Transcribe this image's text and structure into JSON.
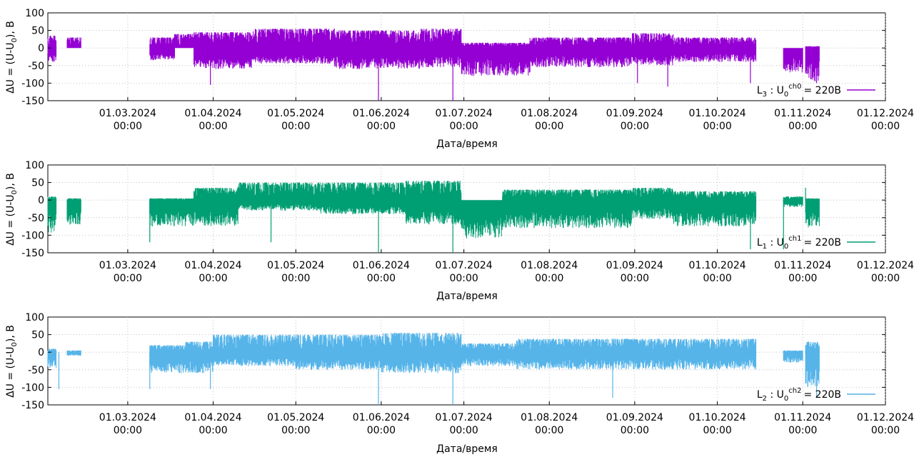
{
  "chart_data": [
    {
      "type": "line",
      "xlabel": "Дата/время",
      "ylabel_parts": [
        "ΔU = (U-U",
        "0",
        "), В"
      ],
      "ylim": [
        -150,
        100
      ],
      "yticks": [
        100,
        50,
        0,
        -50,
        -100,
        -150
      ],
      "xlim": [
        "2024-02-01",
        "2024-12-01"
      ],
      "xticks": [
        {
          "date": "2024-03-01",
          "label": "01.03.2024",
          "time": "00:00"
        },
        {
          "date": "2024-04-01",
          "label": "01.04.2024",
          "time": "00:00"
        },
        {
          "date": "2024-05-01",
          "label": "01.05.2024",
          "time": "00:00"
        },
        {
          "date": "2024-06-01",
          "label": "01.06.2024",
          "time": "00:00"
        },
        {
          "date": "2024-07-01",
          "label": "01.07.2024",
          "time": "00:00"
        },
        {
          "date": "2024-08-01",
          "label": "01.08.2024",
          "time": "00:00"
        },
        {
          "date": "2024-09-01",
          "label": "01.09.2024",
          "time": "00:00"
        },
        {
          "date": "2024-10-01",
          "label": "01.10.2024",
          "time": "00:00"
        },
        {
          "date": "2024-11-01",
          "label": "01.11.2024",
          "time": "00:00"
        },
        {
          "date": "2024-12-01",
          "label": "01.12.2024",
          "time": "00:00"
        }
      ],
      "grid": true,
      "legend_position": "bottom-right",
      "legend": {
        "phase": "L",
        "phase_sub": "3",
        "u": "U",
        "u_sub": "0",
        "channel": "ch0",
        "value": "= 220В"
      },
      "series": [
        {
          "color": "#9400d3",
          "segments": [
            {
              "start": "2024-02-01",
              "end": "2024-02-04",
              "lo": -40,
              "hi": 35
            },
            {
              "start": "2024-02-08",
              "end": "2024-02-13",
              "lo": 0,
              "hi": 30
            },
            {
              "start": "2024-03-09",
              "end": "2024-03-18",
              "lo": -35,
              "hi": 30
            },
            {
              "start": "2024-03-18",
              "end": "2024-03-25",
              "lo": 0,
              "hi": 40
            },
            {
              "start": "2024-03-25",
              "end": "2024-04-15",
              "lo": -60,
              "hi": 45
            },
            {
              "start": "2024-04-15",
              "end": "2024-05-15",
              "lo": -45,
              "hi": 55
            },
            {
              "start": "2024-05-15",
              "end": "2024-06-15",
              "lo": -60,
              "hi": 50
            },
            {
              "start": "2024-06-15",
              "end": "2024-06-30",
              "lo": -55,
              "hi": 55
            },
            {
              "start": "2024-06-30",
              "end": "2024-07-25",
              "lo": -80,
              "hi": 15
            },
            {
              "start": "2024-07-25",
              "end": "2024-08-31",
              "lo": -55,
              "hi": 30
            },
            {
              "start": "2024-08-31",
              "end": "2024-09-15",
              "lo": -50,
              "hi": 42
            },
            {
              "start": "2024-09-15",
              "end": "2024-10-15",
              "lo": -40,
              "hi": 30
            },
            {
              "start": "2024-10-25",
              "end": "2024-11-01",
              "lo": -70,
              "hi": 0
            },
            {
              "start": "2024-11-02",
              "end": "2024-11-07",
              "lo": -95,
              "hi": 5
            }
          ],
          "spikes": [
            {
              "date": "2024-03-31",
              "value": -105
            },
            {
              "date": "2024-05-31",
              "value": -150
            },
            {
              "date": "2024-06-27",
              "value": -150
            },
            {
              "date": "2024-09-02",
              "value": -100
            },
            {
              "date": "2024-09-13",
              "value": -110
            },
            {
              "date": "2024-10-13",
              "value": -100
            },
            {
              "date": "2024-11-06",
              "value": -100
            }
          ]
        }
      ]
    },
    {
      "type": "line",
      "xlabel": "Дата/время",
      "ylabel_parts": [
        "ΔU = (U-U",
        "0",
        "), В"
      ],
      "ylim": [
        -150,
        100
      ],
      "yticks": [
        100,
        50,
        0,
        -50,
        -100,
        -150
      ],
      "xlim": [
        "2024-02-01",
        "2024-12-01"
      ],
      "xticks": [
        {
          "date": "2024-03-01",
          "label": "01.03.2024",
          "time": "00:00"
        },
        {
          "date": "2024-04-01",
          "label": "01.04.2024",
          "time": "00:00"
        },
        {
          "date": "2024-05-01",
          "label": "01.05.2024",
          "time": "00:00"
        },
        {
          "date": "2024-06-01",
          "label": "01.06.2024",
          "time": "00:00"
        },
        {
          "date": "2024-07-01",
          "label": "01.07.2024",
          "time": "00:00"
        },
        {
          "date": "2024-08-01",
          "label": "01.08.2024",
          "time": "00:00"
        },
        {
          "date": "2024-09-01",
          "label": "01.09.2024",
          "time": "00:00"
        },
        {
          "date": "2024-10-01",
          "label": "01.10.2024",
          "time": "00:00"
        },
        {
          "date": "2024-11-01",
          "label": "01.11.2024",
          "time": "00:00"
        },
        {
          "date": "2024-12-01",
          "label": "01.12.2024",
          "time": "00:00"
        }
      ],
      "grid": true,
      "legend_position": "bottom-right",
      "legend": {
        "phase": "L",
        "phase_sub": "1",
        "u": "U",
        "u_sub": "0",
        "channel": "ch1",
        "value": "= 220В"
      },
      "series": [
        {
          "color": "#009e73",
          "segments": [
            {
              "start": "2024-02-01",
              "end": "2024-02-04",
              "lo": -95,
              "hi": 10
            },
            {
              "start": "2024-02-08",
              "end": "2024-02-13",
              "lo": -70,
              "hi": 5
            },
            {
              "start": "2024-03-09",
              "end": "2024-03-25",
              "lo": -75,
              "hi": 5
            },
            {
              "start": "2024-03-25",
              "end": "2024-04-10",
              "lo": -75,
              "hi": 35
            },
            {
              "start": "2024-04-10",
              "end": "2024-05-10",
              "lo": -30,
              "hi": 50
            },
            {
              "start": "2024-05-10",
              "end": "2024-06-10",
              "lo": -40,
              "hi": 50
            },
            {
              "start": "2024-06-10",
              "end": "2024-06-30",
              "lo": -70,
              "hi": 55
            },
            {
              "start": "2024-06-30",
              "end": "2024-07-15",
              "lo": -110,
              "hi": 0
            },
            {
              "start": "2024-07-15",
              "end": "2024-08-31",
              "lo": -80,
              "hi": 30
            },
            {
              "start": "2024-08-31",
              "end": "2024-09-15",
              "lo": -55,
              "hi": 35
            },
            {
              "start": "2024-09-15",
              "end": "2024-10-15",
              "lo": -75,
              "hi": 25
            },
            {
              "start": "2024-10-25",
              "end": "2024-11-01",
              "lo": -20,
              "hi": 10
            },
            {
              "start": "2024-11-02",
              "end": "2024-11-07",
              "lo": -80,
              "hi": 5
            }
          ],
          "spikes": [
            {
              "date": "2024-03-09",
              "value": -120
            },
            {
              "date": "2024-04-22",
              "value": -120
            },
            {
              "date": "2024-05-31",
              "value": -150
            },
            {
              "date": "2024-06-27",
              "value": -150
            },
            {
              "date": "2024-10-13",
              "value": -140
            },
            {
              "date": "2024-10-25",
              "value": -140
            },
            {
              "date": "2024-11-02",
              "value": 35
            }
          ]
        }
      ]
    },
    {
      "type": "line",
      "xlabel": "Дата/время",
      "ylabel_parts": [
        "ΔU = (U-U",
        "0",
        "), В"
      ],
      "ylim": [
        -150,
        100
      ],
      "yticks": [
        100,
        50,
        0,
        -50,
        -100,
        -150
      ],
      "xlim": [
        "2024-02-01",
        "2024-12-01"
      ],
      "xticks": [
        {
          "date": "2024-03-01",
          "label": "01.03.2024",
          "time": "00:00"
        },
        {
          "date": "2024-04-01",
          "label": "01.04.2024",
          "time": "00:00"
        },
        {
          "date": "2024-05-01",
          "label": "01.05.2024",
          "time": "00:00"
        },
        {
          "date": "2024-06-01",
          "label": "01.06.2024",
          "time": "00:00"
        },
        {
          "date": "2024-07-01",
          "label": "01.07.2024",
          "time": "00:00"
        },
        {
          "date": "2024-08-01",
          "label": "01.08.2024",
          "time": "00:00"
        },
        {
          "date": "2024-09-01",
          "label": "01.09.2024",
          "time": "00:00"
        },
        {
          "date": "2024-10-01",
          "label": "01.10.2024",
          "time": "00:00"
        },
        {
          "date": "2024-11-01",
          "label": "01.11.2024",
          "time": "00:00"
        },
        {
          "date": "2024-12-01",
          "label": "01.12.2024",
          "time": "00:00"
        }
      ],
      "grid": true,
      "legend_position": "bottom-right",
      "legend": {
        "phase": "L",
        "phase_sub": "2",
        "u": "U",
        "u_sub": "0",
        "channel": "ch2",
        "value": "= 220В"
      },
      "series": [
        {
          "color": "#56b4e9",
          "segments": [
            {
              "start": "2024-02-01",
              "end": "2024-02-04",
              "lo": -45,
              "hi": 10
            },
            {
              "start": "2024-02-08",
              "end": "2024-02-13",
              "lo": -10,
              "hi": 5
            },
            {
              "start": "2024-03-09",
              "end": "2024-03-22",
              "lo": -60,
              "hi": 20
            },
            {
              "start": "2024-03-22",
              "end": "2024-04-01",
              "lo": -60,
              "hi": 30
            },
            {
              "start": "2024-04-01",
              "end": "2024-05-01",
              "lo": -40,
              "hi": 50
            },
            {
              "start": "2024-05-01",
              "end": "2024-06-01",
              "lo": -50,
              "hi": 50
            },
            {
              "start": "2024-06-01",
              "end": "2024-06-30",
              "lo": -60,
              "hi": 55
            },
            {
              "start": "2024-06-30",
              "end": "2024-07-20",
              "lo": -40,
              "hi": 25
            },
            {
              "start": "2024-07-20",
              "end": "2024-10-15",
              "lo": -50,
              "hi": 38
            },
            {
              "start": "2024-10-25",
              "end": "2024-11-01",
              "lo": -30,
              "hi": 5
            },
            {
              "start": "2024-11-02",
              "end": "2024-11-07",
              "lo": -100,
              "hi": 30
            }
          ],
          "spikes": [
            {
              "date": "2024-02-05",
              "value": -105
            },
            {
              "date": "2024-03-09",
              "value": -105
            },
            {
              "date": "2024-03-31",
              "value": -105
            },
            {
              "date": "2024-05-31",
              "value": -150
            },
            {
              "date": "2024-06-27",
              "value": -150
            },
            {
              "date": "2024-08-24",
              "value": -130
            },
            {
              "date": "2024-11-06",
              "value": -130
            }
          ]
        }
      ]
    }
  ]
}
